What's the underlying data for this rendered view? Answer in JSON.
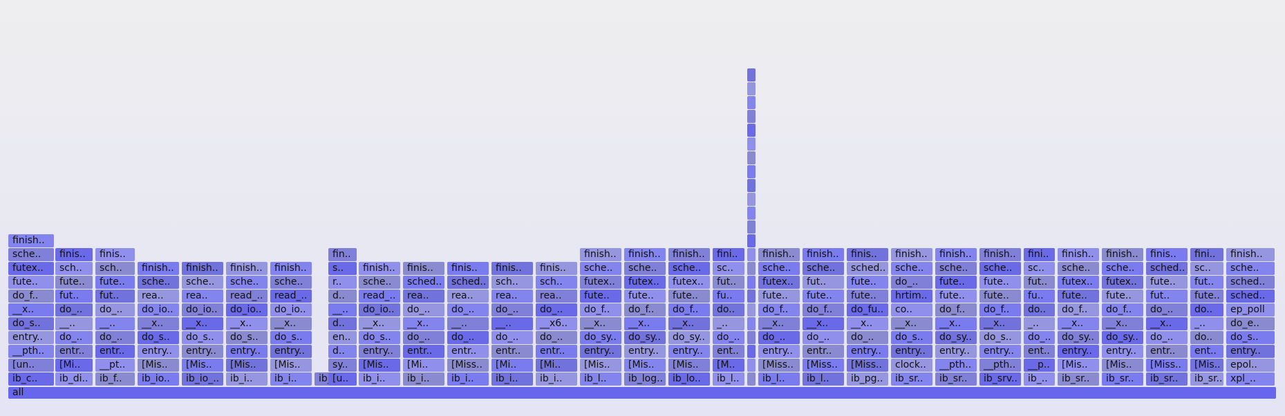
{
  "chart_data": {
    "type": "flamegraph",
    "palette": [
      "#6a6ae8",
      "#7b7bf0",
      "#8484ee",
      "#9090ec",
      "#7272dc",
      "#8080d8",
      "#8a8ad0",
      "#9696e0"
    ],
    "root": {
      "label": "all",
      "color": "#6767ee"
    },
    "columns": [
      {
        "s": 12,
        "w": 68,
        "frames": [
          "ib_c..",
          "[un..",
          "__pth..",
          "entry..",
          "do_s..",
          "__x..",
          "do_f..",
          "fute..",
          "futex..",
          "sche..",
          "finish.."
        ]
      },
      {
        "s": 80,
        "w": 56,
        "frames": [
          "ib_di..",
          "[Mi..",
          "entr..",
          "do_..",
          "__..",
          "do_..",
          "fut..",
          "fute..",
          "sch..",
          "finis.."
        ]
      },
      {
        "s": 138,
        "w": 59,
        "frames": [
          "ib_f..",
          "__pt..",
          "entr..",
          "do_..",
          "__..",
          "do_..",
          "fut..",
          "fute..",
          "sch..",
          "finis.."
        ]
      },
      {
        "s": 199,
        "w": 62,
        "frames": [
          "ib_io..",
          "[Mis..",
          "entry..",
          "do_s..",
          "__x..",
          "do_io..",
          "rea..",
          "sche..",
          "finish.."
        ]
      },
      {
        "s": 263,
        "w": 62,
        "frames": [
          "ib_io_..",
          "[Mis..",
          "entry..",
          "do_s..",
          "__x..",
          "do_io..",
          "rea..",
          "sche..",
          "finish.."
        ]
      },
      {
        "s": 327,
        "w": 62,
        "frames": [
          "ib_i..",
          "[Mis..",
          "entry..",
          "do_s..",
          "__x..",
          "do_io..",
          "read_..",
          "sche..",
          "finish.."
        ]
      },
      {
        "s": 391,
        "w": 62,
        "frames": [
          "ib_i..",
          "[Mis..",
          "entry..",
          "do_s..",
          "__x..",
          "do_io..",
          "read_..",
          "sche..",
          "finish.."
        ]
      },
      {
        "s": 455,
        "w": 40,
        "frames": [
          "ib_i.."
        ]
      },
      {
        "s": 475,
        "w": 43,
        "frames": [
          "[u..",
          "sy..",
          "d..",
          "en..",
          "d..",
          "__..",
          "d..",
          "r..",
          "s..",
          "fin.."
        ]
      },
      {
        "s": 519,
        "w": 62,
        "frames": [
          "ib_i..",
          "[Mis..",
          "entry..",
          "do_s..",
          "__x..",
          "do_io..",
          "read_..",
          "sche..",
          "finish.."
        ]
      },
      {
        "s": 583,
        "w": 62,
        "frames": [
          "ib_i..",
          "[Mi..",
          "entr..",
          "do_..",
          "__x..",
          "do_..",
          "rea..",
          "sched..",
          "finis.."
        ]
      },
      {
        "s": 647,
        "w": 62,
        "frames": [
          "ib_i..",
          "[Miss..",
          "entr..",
          "do_..",
          "__..",
          "do_..",
          "rea..",
          "sched..",
          "finis.."
        ]
      },
      {
        "s": 711,
        "w": 62,
        "frames": [
          "ib_i..",
          "[Mi..",
          "entr..",
          "do_..",
          "__..",
          "do_..",
          "rea..",
          "sch..",
          "finis.."
        ]
      },
      {
        "s": 775,
        "w": 62,
        "frames": [
          "ib_i..",
          "[Mi..",
          "entr..",
          "do_..",
          "__x6..",
          "do_..",
          "rea..",
          "sch..",
          "finis.."
        ]
      },
      {
        "s": 839,
        "w": 62,
        "frames": [
          "ib_l..",
          "[Mis..",
          "entry..",
          "do_sy..",
          "__x..",
          "do_f..",
          "fute..",
          "futex..",
          "sche..",
          "finish.."
        ]
      },
      {
        "s": 903,
        "w": 62,
        "frames": [
          "ib_log..",
          "[Mis..",
          "entry..",
          "do_sy..",
          "__x..",
          "do_f..",
          "fute..",
          "futex..",
          "sche..",
          "finish.."
        ]
      },
      {
        "s": 967,
        "w": 62,
        "frames": [
          "ib_lo..",
          "[Mis..",
          "entry..",
          "do_sy..",
          "__x..",
          "do_f..",
          "fute..",
          "futex..",
          "sche..",
          "finish.."
        ]
      },
      {
        "s": 1031,
        "w": 48,
        "frames": [
          "ib_l..",
          "[M..",
          "ent..",
          "do_..",
          "_..",
          "do..",
          "fu..",
          "fut..",
          "sc..",
          "fini.."
        ]
      },
      {
        "s": 1081,
        "w": 14,
        "frames": [
          "",
          "",
          "",
          "",
          "",
          "",
          "",
          "",
          "",
          "",
          "",
          "",
          "",
          "",
          "",
          "",
          "",
          "",
          "",
          "",
          "",
          "",
          ""
        ]
      },
      {
        "s": 1097,
        "w": 62,
        "frames": [
          "ib_l..",
          "[Miss..",
          "entry..",
          "do_..",
          "__x..",
          "do_f..",
          "fute..",
          "futex..",
          "sche..",
          "finish.."
        ]
      },
      {
        "s": 1161,
        "w": 62,
        "frames": [
          "ib_l..",
          "[Miss..",
          "entr..",
          "do_..",
          "__x..",
          "do_f..",
          "fute..",
          "fut..",
          "sche..",
          "finish.."
        ]
      },
      {
        "s": 1225,
        "w": 62,
        "frames": [
          "ib_pg..",
          "[Miss..",
          "entry..",
          "do_..",
          "__x..",
          "do_fu..",
          "fute..",
          "fute..",
          "sched..",
          "finis.."
        ]
      },
      {
        "s": 1289,
        "w": 62,
        "frames": [
          "ib_sr..",
          "clock..",
          "entry..",
          "do_s..",
          "__x..",
          "co..",
          "hrtim..",
          "do_..",
          "sche..",
          "finish.."
        ]
      },
      {
        "s": 1353,
        "w": 62,
        "frames": [
          "ib_sr..",
          "__pth..",
          "entry..",
          "do_sy..",
          "__x..",
          "do_f..",
          "fute..",
          "fute..",
          "sche..",
          "finish.."
        ]
      },
      {
        "s": 1417,
        "w": 62,
        "frames": [
          "ib_srv..",
          "__pth..",
          "entry..",
          "do_s..",
          "__x..",
          "do_f..",
          "fute..",
          "fute..",
          "sche..",
          "finish.."
        ]
      },
      {
        "s": 1481,
        "w": 47,
        "frames": [
          "ib_..",
          "__p..",
          "ent..",
          "do_..",
          "_..",
          "do..",
          "fu..",
          "fut..",
          "sc..",
          "fini.."
        ]
      },
      {
        "s": 1530,
        "w": 62,
        "frames": [
          "ib_sr..",
          "[Mis..",
          "entry..",
          "do_sy..",
          "__x..",
          "do_f..",
          "fute..",
          "futex..",
          "sche..",
          "finish.."
        ]
      },
      {
        "s": 1594,
        "w": 62,
        "frames": [
          "ib_sr..",
          "[Mis..",
          "entry..",
          "do_sy..",
          "__x..",
          "do_f..",
          "fute..",
          "futex..",
          "sche..",
          "finish.."
        ]
      },
      {
        "s": 1658,
        "w": 62,
        "frames": [
          "ib_sr..",
          "[Miss..",
          "entr..",
          "do_..",
          "__x..",
          "do_..",
          "fut..",
          "fute..",
          "sched..",
          "finis.."
        ]
      },
      {
        "s": 1722,
        "w": 50,
        "frames": [
          "ib_sr..",
          "[Mis..",
          "ent..",
          "do..",
          "_..",
          "do..",
          "fute..",
          "fut..",
          "sc..",
          "fini.."
        ]
      },
      {
        "s": 1774,
        "w": 72,
        "frames": [
          "xpl_..",
          "epol..",
          "entry..",
          "do_s..",
          "do_e..",
          "ep_poll",
          "sched..",
          "sched..",
          "sche..",
          "finish.."
        ]
      }
    ]
  }
}
